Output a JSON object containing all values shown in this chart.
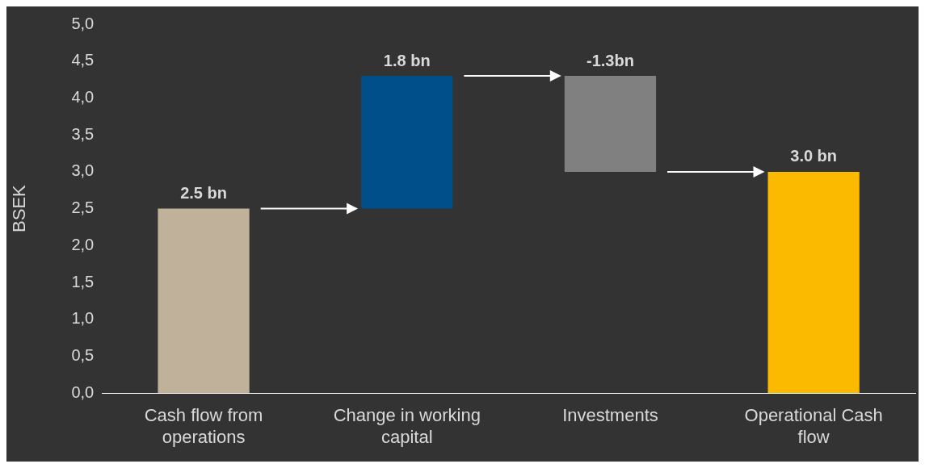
{
  "chart_data": {
    "type": "bar",
    "ylabel": "BSEK",
    "categories": [
      "Cash flow from operations",
      "Change in working capital",
      "Investments",
      "Operational Cash flow"
    ],
    "values": [
      2.5,
      1.8,
      -1.3,
      3.0
    ],
    "base": [
      0,
      2.5,
      4.3,
      0
    ],
    "colors": [
      "#c0b29a",
      "#004f8b",
      "#808080",
      "#fbba00"
    ],
    "value_labels": [
      "2.5 bn",
      "1.8 bn",
      "-1.3bn",
      "3.0 bn"
    ],
    "ylim": [
      0,
      5
    ],
    "yticks": [
      {
        "value": 0,
        "label": "0,0"
      },
      {
        "value": 0.5,
        "label": "0,5"
      },
      {
        "value": 1,
        "label": "1,0"
      },
      {
        "value": 1.5,
        "label": "1,5"
      },
      {
        "value": 2,
        "label": "2,0"
      },
      {
        "value": 2.5,
        "label": "2,5"
      },
      {
        "value": 3,
        "label": "3,0"
      },
      {
        "value": 3.5,
        "label": "3,5"
      },
      {
        "value": 4,
        "label": "4,0"
      },
      {
        "value": 4.5,
        "label": "4,5"
      },
      {
        "value": 5,
        "label": "5,0"
      }
    ],
    "grid": false,
    "legend": false
  }
}
